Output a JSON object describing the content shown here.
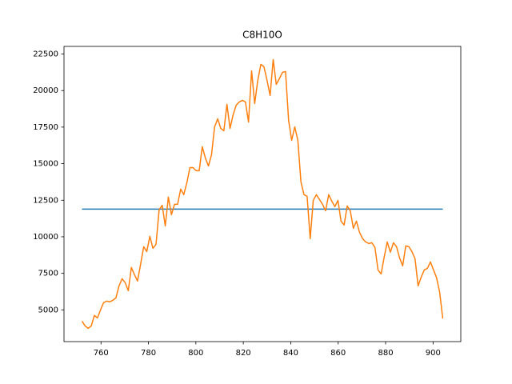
{
  "chart_data": {
    "type": "line",
    "title": "C8H10O",
    "xlim": [
      744.4,
      911.7
    ],
    "xticks": [
      760,
      780,
      800,
      820,
      840,
      860,
      880,
      900
    ],
    "ylim": [
      2830,
      23020
    ],
    "yticks": [
      5000,
      7500,
      10000,
      12500,
      15000,
      17500,
      20000,
      22500
    ],
    "grid": false,
    "series": [
      {
        "color": "#1f77b4",
        "x": [
          752,
          904.1
        ],
        "values": [
          11890,
          11890
        ]
      },
      {
        "color": "#ff7f0e",
        "x": [
          752,
          753.3,
          754.6,
          755.9,
          757.2,
          758.5,
          759.8,
          761.1,
          762.4,
          763.7,
          765,
          766.3,
          767.6,
          768.9,
          770.2,
          771.5,
          772.8,
          774.1,
          775.4,
          776.7,
          778,
          779.3,
          780.6,
          781.9,
          783.2,
          784.5,
          785.8,
          787.1,
          788.4,
          789.7,
          791,
          792.3,
          793.6,
          794.9,
          796.2,
          797.5,
          798.8,
          800.1,
          801.4,
          802.7,
          804,
          805.3,
          806.6,
          807.9,
          809.2,
          810.5,
          811.8,
          813.1,
          814.4,
          815.7,
          817,
          818.3,
          819.6,
          820.9,
          822.2,
          823.5,
          824.8,
          826.1,
          827.4,
          828.7,
          830,
          831.3,
          832.6,
          833.9,
          835.2,
          836.5,
          837.8,
          839.1,
          840.4,
          841.7,
          843,
          844.3,
          845.6,
          846.9,
          848.2,
          849.5,
          850.8,
          852.1,
          853.4,
          854.7,
          856,
          857.3,
          858.6,
          859.9,
          861.2,
          862.5,
          863.8,
          865.1,
          866.4,
          867.7,
          869,
          870.3,
          871.6,
          872.9,
          874.2,
          875.5,
          876.8,
          878.1,
          879.4,
          880.7,
          882,
          883.3,
          884.6,
          885.9,
          887.2,
          888.5,
          889.8,
          891.1,
          892.4,
          893.7,
          895,
          896.3,
          897.6,
          898.9,
          900.2,
          901.5,
          902.8,
          904.1
        ],
        "values": [
          4230,
          3900,
          3740,
          3900,
          4620,
          4450,
          5000,
          5490,
          5600,
          5550,
          5660,
          5820,
          6640,
          7130,
          6860,
          6310,
          7900,
          7410,
          6970,
          8120,
          9320,
          8990,
          10030,
          9210,
          9480,
          11840,
          12160,
          10740,
          12710,
          11510,
          12220,
          12220,
          13260,
          12880,
          13700,
          14730,
          14730,
          14520,
          14520,
          16160,
          15390,
          14840,
          15610,
          17520,
          18070,
          17410,
          17250,
          19060,
          17410,
          18340,
          19000,
          19220,
          19330,
          19220,
          17850,
          21350,
          19110,
          20700,
          21790,
          21630,
          20700,
          19660,
          22120,
          20420,
          20810,
          21240,
          21300,
          17960,
          16590,
          17520,
          16590,
          13750,
          12880,
          12770,
          9870,
          12490,
          12880,
          12550,
          12220,
          11780,
          12880,
          12440,
          12060,
          12490,
          11070,
          10800,
          12110,
          11780,
          10580,
          11070,
          10300,
          9870,
          9650,
          9540,
          9590,
          9270,
          7730,
          7460,
          8610,
          9650,
          8940,
          9590,
          9320,
          8550,
          8010,
          9380,
          9320,
          8990,
          8500,
          6640,
          7240,
          7730,
          7840,
          8280,
          7730,
          7190,
          6200,
          4400
        ]
      }
    ]
  }
}
